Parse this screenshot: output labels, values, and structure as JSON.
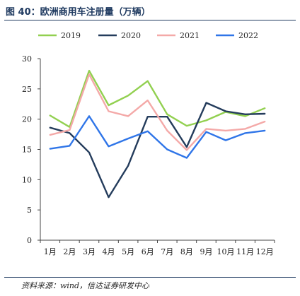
{
  "header": {
    "title": "图 40：欧洲商用车注册量（万辆）"
  },
  "footer": {
    "source": "资料来源：wind，信达证券研发中心"
  },
  "chart_data": {
    "type": "line",
    "title": "图 40：欧洲商用车注册量（万辆）",
    "xlabel": "",
    "ylabel": "",
    "categories": [
      "1月",
      "2月",
      "3月",
      "4月",
      "5月",
      "6月",
      "7月",
      "8月",
      "9月",
      "10月",
      "11月",
      "12月"
    ],
    "ylim": [
      0,
      30
    ],
    "yticks": [
      0,
      5,
      10,
      15,
      20,
      25,
      30
    ],
    "grid": false,
    "legend": "top",
    "series": [
      {
        "name": "2019",
        "color": "#92d050",
        "values": [
          20.6,
          18.7,
          28.0,
          22.3,
          23.9,
          26.3,
          20.8,
          18.9,
          19.8,
          21.2,
          20.5,
          21.8
        ]
      },
      {
        "name": "2020",
        "color": "#243c5c",
        "values": [
          18.6,
          17.7,
          14.5,
          7.1,
          12.3,
          20.4,
          20.4,
          15.4,
          22.7,
          21.3,
          20.8,
          20.9
        ]
      },
      {
        "name": "2021",
        "color": "#f4a9a8",
        "values": [
          17.4,
          18.2,
          27.4,
          21.3,
          20.5,
          23.1,
          18.1,
          14.9,
          18.4,
          18.1,
          18.4,
          19.6
        ]
      },
      {
        "name": "2022",
        "color": "#2f75e8",
        "values": [
          15.1,
          15.6,
          20.5,
          15.5,
          16.8,
          18.0,
          15.0,
          13.6,
          17.9,
          16.5,
          17.7,
          18.1
        ]
      }
    ]
  }
}
